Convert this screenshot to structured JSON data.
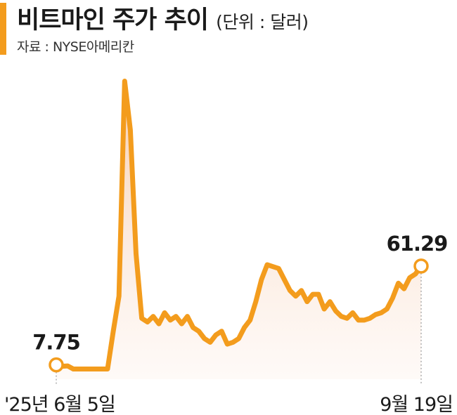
{
  "header": {
    "title": "비트마인 주가 추이",
    "unit": "(단위 : 달러)",
    "source": "자료 : NYSE아메리칸"
  },
  "colors": {
    "accent": "#f39c1d",
    "line": "#f39c1d",
    "fill_top": "#f6c9a8",
    "fill_bottom": "#fdf2ec"
  },
  "chart_data": {
    "type": "area",
    "title": "비트마인 주가 추이",
    "ylabel": "",
    "xlabel": "",
    "ylim": [
      0,
      175
    ],
    "x_start_label": "'25년 6월 5일",
    "x_end_label": "9월 19일",
    "start_value_label": "7.75",
    "end_value_label": "61.29",
    "values": [
      7.75,
      7.0,
      7.2,
      5.5,
      5.5,
      5.5,
      5.5,
      5.5,
      5.5,
      5.5,
      26,
      45,
      161.5,
      135,
      68,
      33,
      31,
      34,
      30,
      36,
      32,
      34,
      30,
      34,
      28,
      26,
      22,
      20,
      24,
      26,
      19,
      20,
      22,
      28,
      32,
      42,
      54,
      62,
      61,
      60,
      54,
      48,
      45,
      48,
      42,
      46,
      46,
      38,
      42,
      37,
      34,
      33,
      36,
      32,
      32,
      33,
      35,
      36,
      38,
      44,
      52,
      49,
      55,
      57,
      61.29
    ]
  }
}
